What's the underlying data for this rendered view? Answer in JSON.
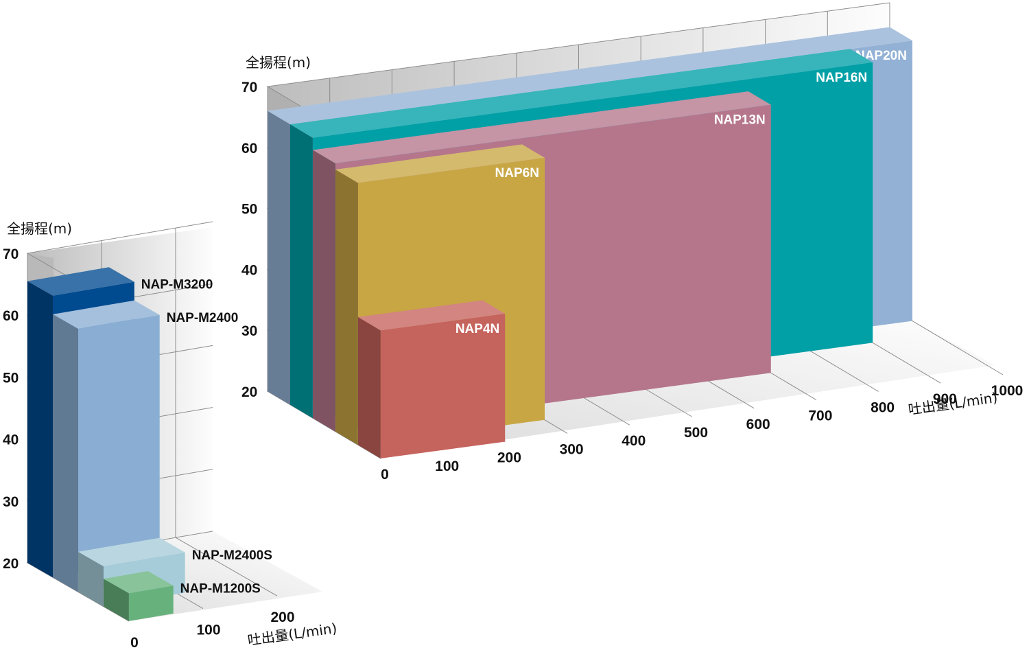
{
  "chart_data": [
    {
      "type": "bar",
      "style": "3d-overlapping-range",
      "ylabel": "全揚程(m)",
      "xlabel": "吐出量(L/min)",
      "ylim": [
        20,
        70
      ],
      "y_ticks": [
        "20",
        "30",
        "40",
        "50",
        "60",
        "70"
      ],
      "x_ticks": [
        "0",
        "100",
        "200"
      ],
      "xlim": [
        0,
        250
      ],
      "series": [
        {
          "name": "NAP-M3200",
          "x_max": 110,
          "head_max": 65.5,
          "color": "#004a8f"
        },
        {
          "name": "NAP-M2400",
          "x_max": 110,
          "head_max": 62.5,
          "color": "#8aaed3"
        },
        {
          "name": "NAP-M2400S",
          "x_max": 110,
          "head_max": 26.5,
          "color": "#a6ccd9"
        },
        {
          "name": "NAP-M1200S",
          "x_max": 60,
          "head_max": 24.5,
          "color": "#67b27c"
        }
      ]
    },
    {
      "type": "bar",
      "style": "3d-overlapping-range",
      "ylabel": "全揚程(m)",
      "xlabel": "吐出量(L/min)",
      "ylim": [
        20,
        70
      ],
      "y_ticks": [
        "20",
        "30",
        "40",
        "50",
        "60",
        "70"
      ],
      "x_ticks": [
        "0",
        "100",
        "200",
        "300",
        "400",
        "500",
        "600",
        "700",
        "800",
        "900",
        "1000"
      ],
      "xlim": [
        0,
        1000
      ],
      "series": [
        {
          "name": "NAP20N",
          "x_max": 1000,
          "head_max": 66,
          "color": "#93b1d5"
        },
        {
          "name": "NAP16N",
          "x_max": 900,
          "head_max": 66,
          "color": "#00a0a6"
        },
        {
          "name": "NAP13N",
          "x_max": 700,
          "head_max": 64,
          "color": "#b5768c"
        },
        {
          "name": "NAP6N",
          "x_max": 300,
          "head_max": 63,
          "color": "#c8a644"
        },
        {
          "name": "NAP4N",
          "x_max": 200,
          "head_max": 41,
          "color": "#c5635d"
        }
      ]
    }
  ]
}
